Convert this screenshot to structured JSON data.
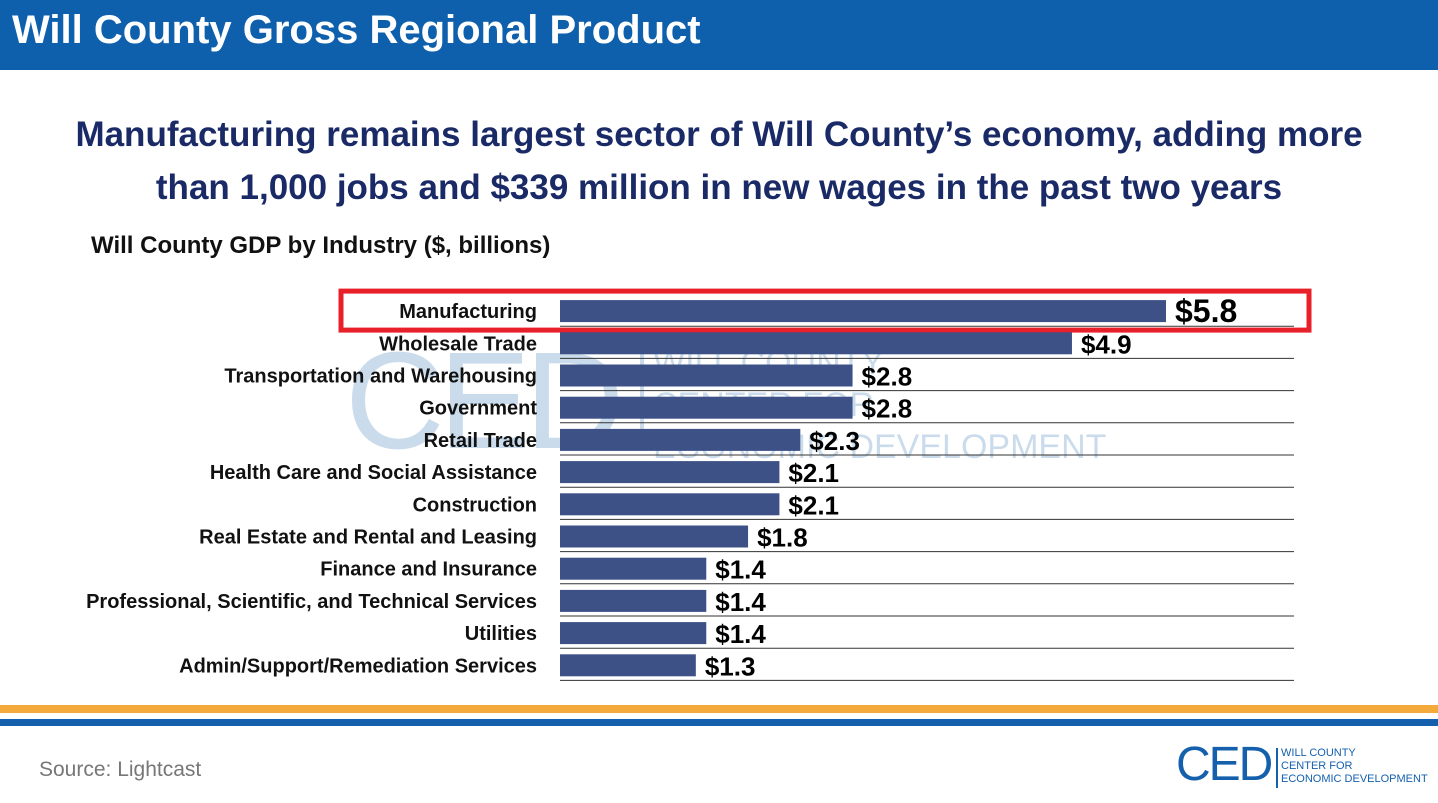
{
  "header": {
    "title": "Will County Gross Regional Product"
  },
  "headline": {
    "line1": "Manufacturing remains largest sector of Will County’s economy, adding more",
    "line2": "than 1,000 jobs and $339 million in new wages in the past two years"
  },
  "footer": {
    "source": "Source: Lightcast"
  },
  "logo": {
    "mark": "CED",
    "line1": "WILL COUNTY",
    "line2": "CENTER FOR",
    "line3": "ECONOMIC DEVELOPMENT"
  },
  "watermark": {
    "mark": "CED",
    "line1": "WILL COUNTY",
    "line2": "CENTER FOR",
    "line3": "ECONOMIC DEVELOPMENT"
  },
  "colors": {
    "header": "#0e5fac",
    "headline": "#1a2a66",
    "bar": "#3d5187",
    "highlight": "#e8202a",
    "orange_band": "#f4a93b",
    "blue_band": "#1560ad"
  },
  "chart_data": {
    "type": "bar",
    "orientation": "horizontal",
    "title": "Will County GDP by Industry ($, billions)",
    "categories": [
      "Manufacturing",
      "Wholesale Trade",
      "Transportation and Warehousing",
      "Government",
      "Retail Trade",
      "Health Care and Social Assistance",
      "Construction",
      "Real Estate and Rental and Leasing",
      "Finance and Insurance",
      "Professional, Scientific, and Technical Services",
      "Utilities",
      "Admin/Support/Remediation Services"
    ],
    "values": [
      5.8,
      4.9,
      2.8,
      2.8,
      2.3,
      2.1,
      2.1,
      1.8,
      1.4,
      1.4,
      1.4,
      1.3
    ],
    "value_labels": [
      "$5.8",
      "$4.9",
      "$2.8",
      "$2.8",
      "$2.3",
      "$2.1",
      "$2.1",
      "$1.8",
      "$1.4",
      "$1.4",
      "$1.4",
      "$1.3"
    ],
    "highlighted_category": "Manufacturing",
    "xlim": [
      0,
      5.8
    ],
    "grid": true
  }
}
